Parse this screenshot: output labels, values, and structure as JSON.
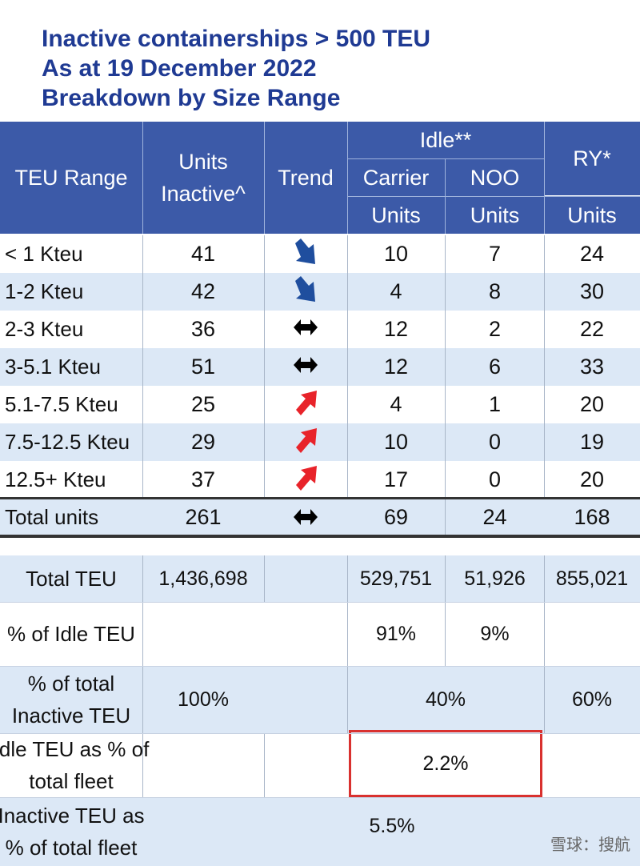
{
  "title": {
    "line1": "Inactive containerships > 500 TEU",
    "line2": "As at 19 December 2022",
    "line3": "Breakdown by Size Range"
  },
  "header": {
    "teu_range": "TEU Range",
    "units_inactive": "Units Inactive^",
    "trend": "Trend",
    "idle": "Idle**",
    "carrier": "Carrier",
    "noo": "NOO",
    "ry": "RY*",
    "units": "Units"
  },
  "rows": [
    {
      "range": "< 1 Kteu",
      "units_inactive": "41",
      "trend": "down-right",
      "carrier": "10",
      "noo": "7",
      "ry": "24"
    },
    {
      "range": "1-2 Kteu",
      "units_inactive": "42",
      "trend": "down-right",
      "carrier": "4",
      "noo": "8",
      "ry": "30"
    },
    {
      "range": "2-3 Kteu",
      "units_inactive": "36",
      "trend": "flat",
      "carrier": "12",
      "noo": "2",
      "ry": "22"
    },
    {
      "range": "3-5.1 Kteu",
      "units_inactive": "51",
      "trend": "flat",
      "carrier": "12",
      "noo": "6",
      "ry": "33"
    },
    {
      "range": "5.1-7.5 Kteu",
      "units_inactive": "25",
      "trend": "up-right",
      "carrier": "4",
      "noo": "1",
      "ry": "20"
    },
    {
      "range": "7.5-12.5 Kteu",
      "units_inactive": "29",
      "trend": "up-right",
      "carrier": "10",
      "noo": "0",
      "ry": "19"
    },
    {
      "range": "12.5+ Kteu",
      "units_inactive": "37",
      "trend": "up-right",
      "carrier": "17",
      "noo": "0",
      "ry": "20"
    }
  ],
  "total": {
    "label": "Total units",
    "units_inactive": "261",
    "trend": "flat",
    "carrier": "69",
    "noo": "24",
    "ry": "168"
  },
  "summary": {
    "total_teu": {
      "label": "Total TEU",
      "units_inactive": "1,436,698",
      "carrier": "529,751",
      "noo": "51,926",
      "ry": "855,021"
    },
    "pct_idle": {
      "label": "% of Idle TEU",
      "carrier": "91%",
      "noo": "9%"
    },
    "pct_inactive": {
      "label_line1": "% of total",
      "label_line2": "Inactive TEU",
      "units_inactive": "100%",
      "idle": "40%",
      "ry": "60%"
    },
    "idle_fleet": {
      "label_line1": "Idle TEU as % of",
      "label_line2": "total fleet",
      "value": "2.2%"
    },
    "inactive_fleet": {
      "label_line1": "Inactive TEU as",
      "label_line2": "% of total fleet",
      "value": "5.5%"
    }
  },
  "watermark": "雪球：搜航",
  "colors": {
    "title": "#1f3a93",
    "header_bg": "#3c5aa8",
    "row_blue": "#dce8f6",
    "arrow_down": "#1f4e9e",
    "arrow_up": "#e8232a",
    "highlight_border": "#d9312f"
  },
  "icons": {
    "down-right": "blue-down-right-arrow-icon",
    "up-right": "red-up-right-arrow-icon",
    "flat": "black-left-right-arrow-icon"
  }
}
